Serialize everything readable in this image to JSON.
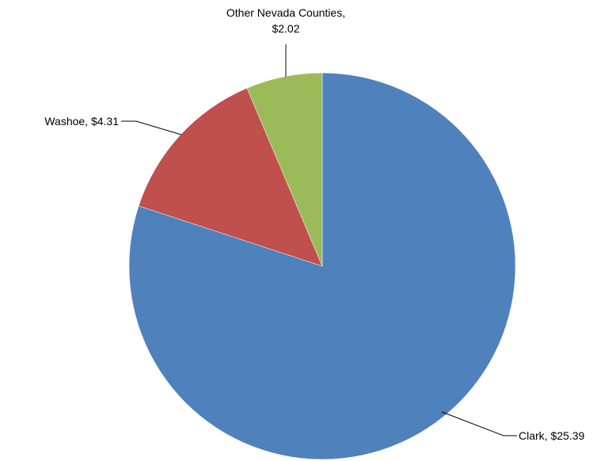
{
  "chart_data": {
    "type": "pie",
    "title": "",
    "start_angle_deg": 0,
    "direction": "clockwise",
    "slices": [
      {
        "key": "clark",
        "name": "Clark",
        "value": 25.39,
        "value_label": "$25.39",
        "color": "#4F81BD",
        "label_lines": [
          "Clark,  $25.39"
        ]
      },
      {
        "key": "washoe",
        "name": "Washoe",
        "value": 4.31,
        "value_label": "$4.31",
        "color": "#C0504D",
        "label_lines": [
          "Washoe,  $4.31"
        ]
      },
      {
        "key": "other",
        "name": "Other Nevada Counties",
        "value": 2.02,
        "value_label": "$2.02",
        "color": "#9BBB59",
        "label_lines": [
          "Other Nevada Counties,",
          "$2.02"
        ]
      }
    ]
  }
}
